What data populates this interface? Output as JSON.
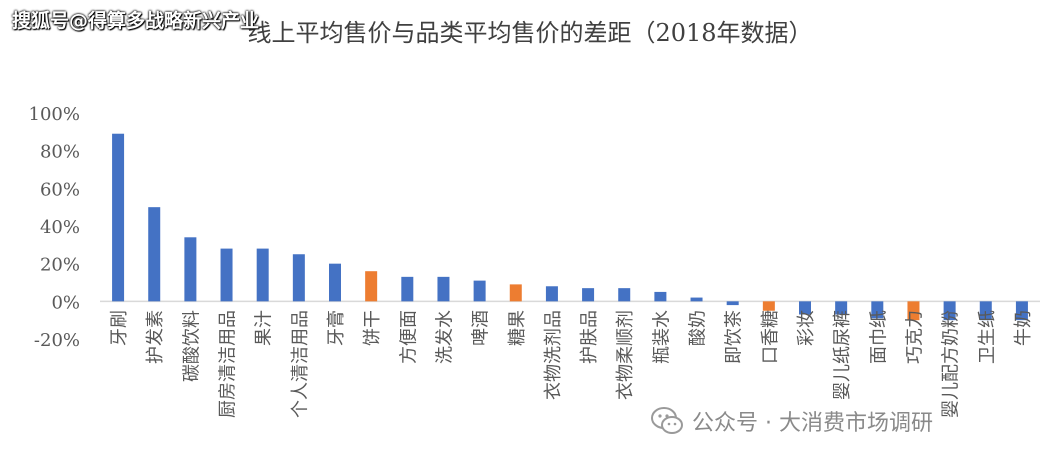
{
  "watermark_top": "搜狐号@得算多战略新兴产业",
  "watermark_bottom": "公众号 · 大消费市场调研",
  "colors": {
    "blue": "#4472C4",
    "orange": "#ED7D31",
    "axis": "#D9D9D9",
    "text": "#595959",
    "title": "#404040"
  },
  "chart_data": {
    "type": "bar",
    "title": "线上平均售价与品类平均售价的差距（2018年数据）",
    "xlabel": "",
    "ylabel": "",
    "ylim": [
      -20,
      100
    ],
    "yticks": [
      "100%",
      "80%",
      "60%",
      "40%",
      "20%",
      "0%",
      "-20%"
    ],
    "ytick_values": [
      100,
      80,
      60,
      40,
      20,
      0,
      -20
    ],
    "grid": false,
    "legend": "none",
    "categories": [
      "牙刷",
      "护发素",
      "碳酸饮料",
      "厨房清洁用品",
      "果汁",
      "个人清洁用品",
      "牙膏",
      "饼干",
      "方便面",
      "洗发水",
      "啤酒",
      "糖果",
      "衣物洗剂品",
      "护肤品",
      "衣物柔顺剂",
      "瓶装水",
      "酸奶",
      "即饮茶",
      "口香糖",
      "彩妆",
      "婴儿纸尿裤",
      "面巾纸",
      "巧克力",
      "婴儿配方奶粉",
      "卫生纸",
      "牛奶"
    ],
    "values": [
      89,
      50,
      34,
      28,
      28,
      25,
      20,
      16,
      13,
      13,
      11,
      9,
      8,
      7,
      7,
      5,
      2,
      -2,
      -5,
      -7,
      -7,
      -9,
      -10,
      -10,
      -10,
      -10
    ],
    "bar_colors": [
      "blue",
      "blue",
      "blue",
      "blue",
      "blue",
      "blue",
      "blue",
      "orange",
      "blue",
      "blue",
      "blue",
      "orange",
      "blue",
      "blue",
      "blue",
      "blue",
      "blue",
      "blue",
      "orange",
      "blue",
      "blue",
      "blue",
      "orange",
      "blue",
      "blue",
      "blue"
    ]
  }
}
